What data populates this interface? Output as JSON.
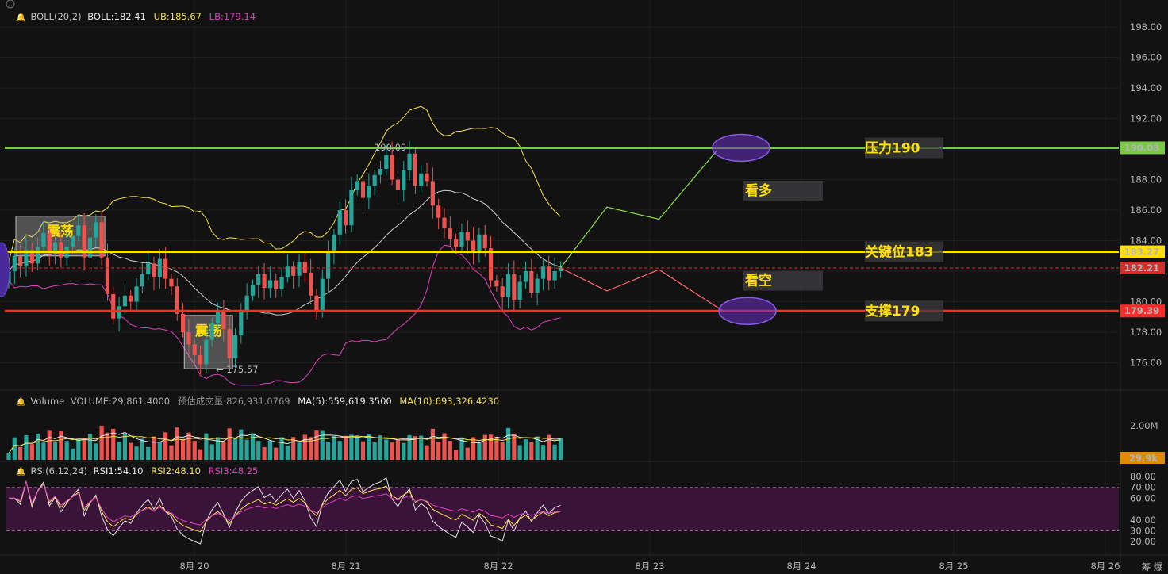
{
  "colors": {
    "bg": "#121212",
    "grid": "#1f1f1f",
    "up": "#26a69a",
    "down": "#ef5350",
    "boll_mid": "#cfcfcf",
    "boll_ub": "#f5e14a",
    "boll_lb": "#e040c0",
    "resistance": "#7ac943",
    "key": "#ffe000",
    "support": "#ff2a2a",
    "bull_path": "#8ee04a",
    "bear_path": "#ff6a6a",
    "ellipse": "#6a2fc7",
    "rsi_band": "#3a1438",
    "rsi1": "#e0e0e0",
    "rsi2": "#f5e14a",
    "rsi3": "#e040c0",
    "vol_badge": "#e08a00",
    "last_price": "#d32f2f"
  },
  "header": {
    "boll": {
      "name": "BOLL(20,2)",
      "mid": "BOLL:182.41",
      "ub": "UB:185.67",
      "lb": "LB:179.14"
    },
    "volume": {
      "name": "Volume",
      "value": "VOLUME:29,861.4000",
      "estimate": "预估成交量:826,931.0769",
      "ma5": "MA(5):559,619.3500",
      "ma10": "MA(10):693,326.4230"
    },
    "rsi": {
      "name": "RSI(6,12,24)",
      "rsi1": "RSI1:54.10",
      "rsi2": "RSI2:48.10",
      "rsi3": "RSI3:48.25"
    }
  },
  "chart_data": {
    "type": "candlestick",
    "price_axis": {
      "ylim": [
        174.5,
        199.5
      ],
      "ticks": [
        "198.00",
        "196.00",
        "194.00",
        "192.00",
        "190.00",
        "188.00",
        "186.00",
        "184.00",
        "182.00",
        "180.00",
        "178.00",
        "176.00"
      ]
    },
    "x_axis": {
      "ticks": [
        "8月 20",
        "8月 21",
        "8月 22",
        "8月 23",
        "8月 24",
        "8月 25",
        "8月 26"
      ]
    },
    "price_badges": [
      {
        "label": "190.08",
        "value": 190.08,
        "color": "#7ac943"
      },
      {
        "label": "183.27",
        "value": 183.27,
        "color": "#ffe000"
      },
      {
        "label": "182.21",
        "value": 182.21,
        "color": "#d32f2f"
      },
      {
        "label": "179.39",
        "value": 179.39,
        "color": "#ff2a2a"
      }
    ],
    "levels": [
      {
        "label": "压力190",
        "value": 190.08,
        "color": "#7ac943"
      },
      {
        "label": "关键位183",
        "value": 183.27,
        "color": "#ffe000"
      },
      {
        "label": "支撑179",
        "value": 179.39,
        "color": "#ff2a2a"
      }
    ],
    "scenario_labels": [
      {
        "label": "看多",
        "value": 187.3
      },
      {
        "label": "看空",
        "value": 181.4
      }
    ],
    "range_labels": [
      {
        "label": "震荡",
        "value_top": 185.6,
        "value_bottom": 183.0,
        "candle_from": 0,
        "candle_to": 16
      },
      {
        "label": "震荡",
        "value_top": 179.1,
        "value_bottom": 175.6,
        "candle_from": 29,
        "candle_to": 38
      }
    ],
    "marks": {
      "high": "190.09",
      "low": "175.57"
    },
    "candles_close": [
      182.0,
      183.0,
      182.3,
      183.4,
      182.5,
      183.6,
      184.5,
      183.2,
      183.9,
      182.9,
      183.6,
      184.3,
      185.0,
      182.9,
      184.2,
      185.2,
      182.9,
      180.5,
      178.9,
      179.7,
      180.4,
      180.0,
      181.0,
      181.8,
      182.5,
      181.6,
      182.8,
      181.5,
      181.0,
      179.2,
      178.0,
      177.2,
      176.5,
      175.9,
      177.5,
      178.6,
      179.4,
      178.2,
      176.3,
      177.8,
      179.3,
      180.4,
      181.1,
      181.8,
      180.9,
      181.4,
      180.8,
      181.6,
      182.3,
      181.7,
      182.6,
      181.9,
      180.4,
      179.3,
      181.5,
      183.2,
      184.4,
      186.0,
      185.0,
      187.3,
      187.9,
      186.8,
      187.6,
      188.3,
      188.7,
      189.6,
      188.0,
      187.3,
      188.6,
      189.7,
      187.6,
      188.4,
      187.9,
      186.3,
      185.5,
      184.8,
      184.1,
      183.6,
      184.6,
      184.0,
      183.2,
      184.4,
      183.5,
      181.4,
      181.0,
      180.3,
      181.8,
      180.1,
      181.3,
      182.0,
      180.6,
      181.5,
      182.3,
      181.4,
      182.0,
      182.21
    ],
    "volume_axis": {
      "ticks": [
        "2.00M"
      ],
      "badge": "29.9k"
    },
    "rsi_axis": {
      "ticks": [
        "80.00",
        "70.00",
        "60.00",
        "40.00",
        "30.00",
        "20.00"
      ],
      "band": [
        30,
        70
      ]
    },
    "projection": {
      "bull": [
        [
          0,
          182.21
        ],
        [
          8,
          186.2
        ],
        [
          17,
          185.4
        ],
        [
          27,
          189.9
        ]
      ],
      "bear": [
        [
          0,
          182.21
        ],
        [
          8,
          180.7
        ],
        [
          17,
          182.1
        ],
        [
          28,
          179.4
        ]
      ]
    }
  }
}
